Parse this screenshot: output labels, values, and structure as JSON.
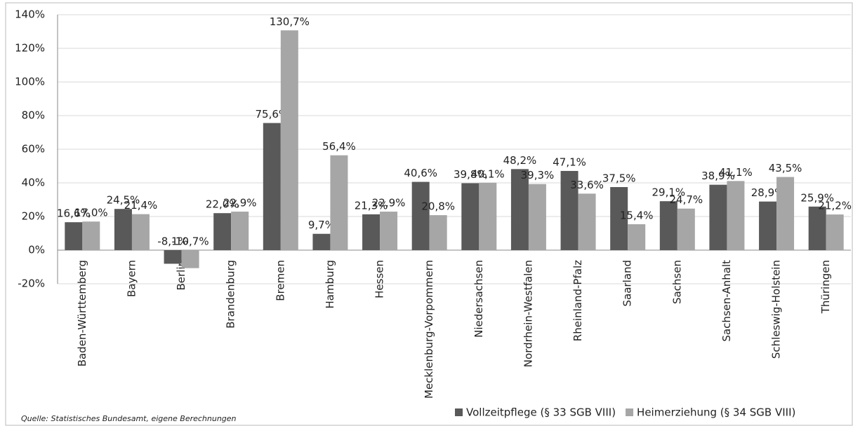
{
  "chart_data": {
    "type": "bar",
    "categories": [
      "Baden-Württemberg",
      "Bayern",
      "Berlin",
      "Brandenburg",
      "Bremen",
      "Hamburg",
      "Hessen",
      "Mecklenburg-Vorpommern",
      "Niedersachsen",
      "Nordrhein-Westfalen",
      "Rheinland-Pfalz",
      "Saarland",
      "Sachsen",
      "Sachsen-Anhalt",
      "Schleswig-Holstein",
      "Thüringen"
    ],
    "series": [
      {
        "name": "Vollzeitpflege (§ 33 SGB VIII)",
        "color": "#595959",
        "values": [
          16.6,
          24.5,
          -8.1,
          22.0,
          75.6,
          9.7,
          21.3,
          40.6,
          39.8,
          48.2,
          47.1,
          37.5,
          29.1,
          38.9,
          28.9,
          25.9
        ],
        "value_labels": [
          "16,6%",
          "24,5%",
          "-8,1%",
          "22,0%",
          "75,6%",
          "9,7%",
          "21,3%",
          "40,6%",
          "39,8%",
          "48,2%",
          "47,1%",
          "37,5%",
          "29,1%",
          "38,9%",
          "28,9%",
          "25,9%"
        ]
      },
      {
        "name": "Heimerziehung (§ 34 SGB VIII)",
        "color": "#a6a6a6",
        "values": [
          17.0,
          21.4,
          -10.7,
          22.9,
          130.7,
          56.4,
          22.9,
          20.8,
          40.1,
          39.3,
          33.6,
          15.4,
          24.7,
          41.1,
          43.5,
          21.2
        ],
        "value_labels": [
          "17,0%",
          "21,4%",
          "-10,7%",
          "22,9%",
          "130,7%",
          "56,4%",
          "22,9%",
          "20,8%",
          "40,1%",
          "39,3%",
          "33,6%",
          "15,4%",
          "24,7%",
          "41,1%",
          "43,5%",
          "21,2%"
        ]
      }
    ],
    "ylim": [
      -20,
      140
    ],
    "yticks": [
      {
        "value": -20,
        "label": "-20%"
      },
      {
        "value": 0,
        "label": "0%"
      },
      {
        "value": 20,
        "label": "20%"
      },
      {
        "value": 40,
        "label": "40%"
      },
      {
        "value": 60,
        "label": "60%"
      },
      {
        "value": 80,
        "label": "80%"
      },
      {
        "value": 100,
        "label": "100%"
      },
      {
        "value": 120,
        "label": "120%"
      },
      {
        "value": 140,
        "label": "140%"
      }
    ],
    "grid": true,
    "legend": "bottom-right",
    "source": "Quelle: Statistisches Bundesamt, eigene Berechnungen"
  }
}
